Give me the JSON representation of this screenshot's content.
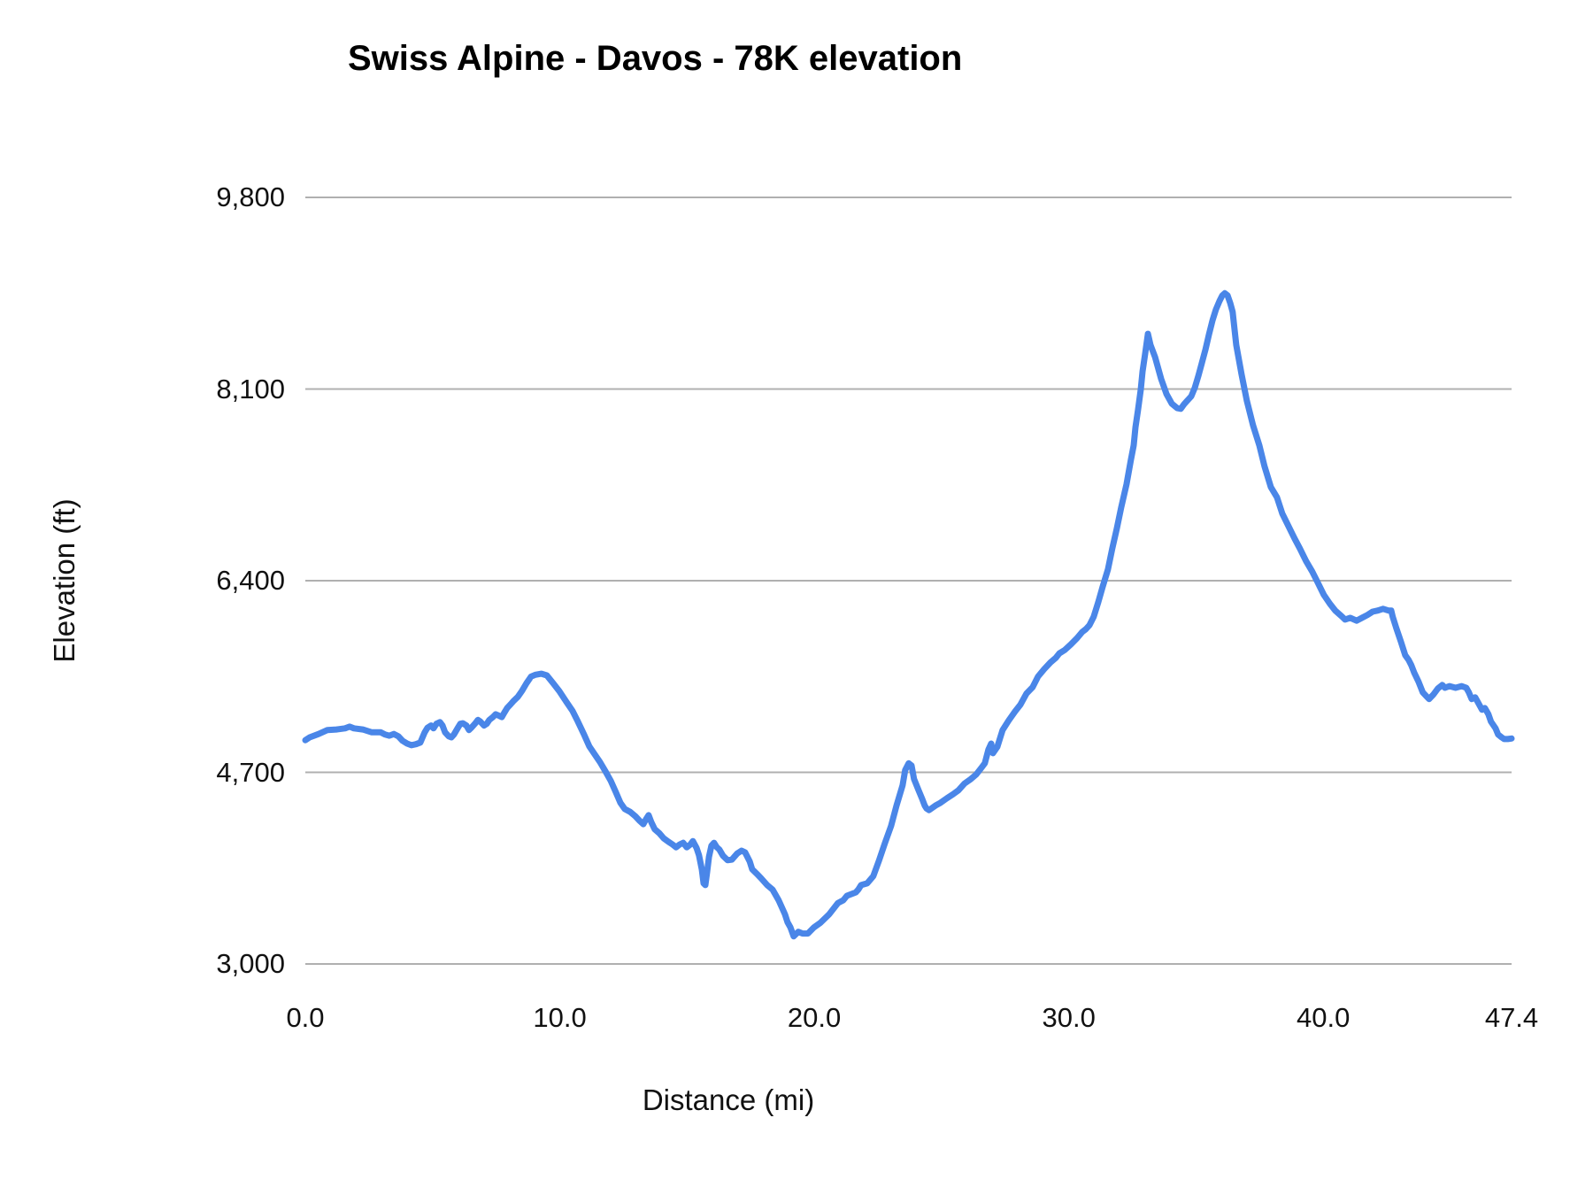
{
  "chart_data": {
    "type": "line",
    "title": "Swiss Alpine - Davos - 78K elevation",
    "xlabel": "Distance (mi)",
    "ylabel": "Elevation (ft)",
    "xlim": [
      0,
      47.4
    ],
    "ylim": [
      3000,
      9800
    ],
    "grid": "horizontal-only",
    "legend": "none",
    "line_color": "#4a86e8",
    "grid_color": "#b0b0b0",
    "x_ticks": [
      {
        "value": 0,
        "label": "0.0"
      },
      {
        "value": 10,
        "label": "10.0"
      },
      {
        "value": 20,
        "label": "20.0"
      },
      {
        "value": 30,
        "label": "30.0"
      },
      {
        "value": 40,
        "label": "40.0"
      },
      {
        "value": 47.4,
        "label": "47.4"
      }
    ],
    "y_ticks": [
      {
        "value": 3000,
        "label": "3,000"
      },
      {
        "value": 4700,
        "label": "4,700"
      },
      {
        "value": 6400,
        "label": "6,400"
      },
      {
        "value": 8100,
        "label": "8,100"
      },
      {
        "value": 9800,
        "label": "9,800"
      }
    ],
    "series": [
      {
        "name": "Elevation",
        "points": [
          [
            0,
            4985
          ],
          [
            0.17,
            5010
          ],
          [
            0.52,
            5040
          ],
          [
            0.87,
            5075
          ],
          [
            1.22,
            5080
          ],
          [
            1.56,
            5090
          ],
          [
            1.74,
            5105
          ],
          [
            1.91,
            5090
          ],
          [
            2.26,
            5080
          ],
          [
            2.61,
            5055
          ],
          [
            2.96,
            5055
          ],
          [
            3.13,
            5035
          ],
          [
            3.3,
            5025
          ],
          [
            3.48,
            5040
          ],
          [
            3.65,
            5020
          ],
          [
            3.82,
            4980
          ],
          [
            4,
            4955
          ],
          [
            4.17,
            4940
          ],
          [
            4.35,
            4950
          ],
          [
            4.52,
            4965
          ],
          [
            4.69,
            5055
          ],
          [
            4.8,
            5095
          ],
          [
            4.94,
            5115
          ],
          [
            5.04,
            5090
          ],
          [
            5.15,
            5130
          ],
          [
            5.29,
            5145
          ],
          [
            5.39,
            5115
          ],
          [
            5.49,
            5055
          ],
          [
            5.63,
            5020
          ],
          [
            5.74,
            5010
          ],
          [
            5.84,
            5035
          ],
          [
            5.98,
            5090
          ],
          [
            6.09,
            5130
          ],
          [
            6.19,
            5135
          ],
          [
            6.33,
            5115
          ],
          [
            6.43,
            5075
          ],
          [
            6.54,
            5100
          ],
          [
            6.68,
            5135
          ],
          [
            6.78,
            5165
          ],
          [
            6.88,
            5150
          ],
          [
            7.02,
            5115
          ],
          [
            7.13,
            5130
          ],
          [
            7.23,
            5165
          ],
          [
            7.37,
            5190
          ],
          [
            7.48,
            5215
          ],
          [
            7.58,
            5205
          ],
          [
            7.72,
            5190
          ],
          [
            7.82,
            5230
          ],
          [
            7.93,
            5270
          ],
          [
            8.07,
            5305
          ],
          [
            8.17,
            5330
          ],
          [
            8.35,
            5370
          ],
          [
            8.52,
            5425
          ],
          [
            8.69,
            5490
          ],
          [
            8.87,
            5550
          ],
          [
            9.04,
            5565
          ],
          [
            9.28,
            5575
          ],
          [
            9.49,
            5560
          ],
          [
            9.74,
            5490
          ],
          [
            9.98,
            5420
          ],
          [
            10.26,
            5325
          ],
          [
            10.5,
            5245
          ],
          [
            10.71,
            5150
          ],
          [
            10.95,
            5035
          ],
          [
            11.16,
            4930
          ],
          [
            11.37,
            4860
          ],
          [
            11.58,
            4790
          ],
          [
            11.79,
            4710
          ],
          [
            12,
            4625
          ],
          [
            12.2,
            4525
          ],
          [
            12.38,
            4430
          ],
          [
            12.55,
            4375
          ],
          [
            12.76,
            4350
          ],
          [
            12.97,
            4310
          ],
          [
            13.14,
            4270
          ],
          [
            13.28,
            4240
          ],
          [
            13.39,
            4285
          ],
          [
            13.49,
            4320
          ],
          [
            13.6,
            4255
          ],
          [
            13.73,
            4195
          ],
          [
            13.91,
            4160
          ],
          [
            14.08,
            4115
          ],
          [
            14.26,
            4085
          ],
          [
            14.43,
            4060
          ],
          [
            14.57,
            4035
          ],
          [
            14.71,
            4060
          ],
          [
            14.85,
            4075
          ],
          [
            14.99,
            4035
          ],
          [
            15.13,
            4060
          ],
          [
            15.23,
            4090
          ],
          [
            15.37,
            4030
          ],
          [
            15.47,
            3965
          ],
          [
            15.58,
            3840
          ],
          [
            15.65,
            3715
          ],
          [
            15.72,
            3700
          ],
          [
            15.79,
            3815
          ],
          [
            15.86,
            3950
          ],
          [
            15.96,
            4050
          ],
          [
            16.06,
            4075
          ],
          [
            16.17,
            4035
          ],
          [
            16.27,
            4015
          ],
          [
            16.41,
            3960
          ],
          [
            16.59,
            3920
          ],
          [
            16.76,
            3925
          ],
          [
            16.97,
            3980
          ],
          [
            17.14,
            4005
          ],
          [
            17.28,
            3990
          ],
          [
            17.46,
            3910
          ],
          [
            17.56,
            3840
          ],
          [
            17.74,
            3800
          ],
          [
            17.91,
            3760
          ],
          [
            18.15,
            3700
          ],
          [
            18.36,
            3660
          ],
          [
            18.6,
            3565
          ],
          [
            18.85,
            3440
          ],
          [
            18.95,
            3370
          ],
          [
            19.06,
            3325
          ],
          [
            19.19,
            3245
          ],
          [
            19.37,
            3285
          ],
          [
            19.54,
            3270
          ],
          [
            19.75,
            3270
          ],
          [
            19.99,
            3325
          ],
          [
            20.24,
            3365
          ],
          [
            20.58,
            3440
          ],
          [
            20.93,
            3540
          ],
          [
            21.14,
            3565
          ],
          [
            21.28,
            3605
          ],
          [
            21.63,
            3635
          ],
          [
            21.73,
            3660
          ],
          [
            21.84,
            3700
          ],
          [
            22.08,
            3715
          ],
          [
            22.32,
            3780
          ],
          [
            22.53,
            3910
          ],
          [
            22.77,
            4070
          ],
          [
            23.02,
            4225
          ],
          [
            23.23,
            4405
          ],
          [
            23.47,
            4585
          ],
          [
            23.57,
            4720
          ],
          [
            23.71,
            4780
          ],
          [
            23.82,
            4760
          ],
          [
            23.92,
            4640
          ],
          [
            24.1,
            4540
          ],
          [
            24.23,
            4470
          ],
          [
            24.34,
            4405
          ],
          [
            24.41,
            4380
          ],
          [
            24.51,
            4365
          ],
          [
            24.76,
            4405
          ],
          [
            24.96,
            4430
          ],
          [
            25.21,
            4470
          ],
          [
            25.45,
            4505
          ],
          [
            25.66,
            4540
          ],
          [
            25.9,
            4600
          ],
          [
            26.15,
            4640
          ],
          [
            26.36,
            4680
          ],
          [
            26.6,
            4750
          ],
          [
            26.7,
            4780
          ],
          [
            26.84,
            4900
          ],
          [
            26.95,
            4955
          ],
          [
            27.02,
            4870
          ],
          [
            27.19,
            4925
          ],
          [
            27.4,
            5075
          ],
          [
            27.64,
            5160
          ],
          [
            27.89,
            5240
          ],
          [
            28.1,
            5300
          ],
          [
            28.34,
            5400
          ],
          [
            28.58,
            5455
          ],
          [
            28.79,
            5550
          ],
          [
            29.03,
            5615
          ],
          [
            29.28,
            5675
          ],
          [
            29.49,
            5715
          ],
          [
            29.63,
            5755
          ],
          [
            29.84,
            5785
          ],
          [
            30.08,
            5835
          ],
          [
            30.32,
            5890
          ],
          [
            30.53,
            5945
          ],
          [
            30.67,
            5970
          ],
          [
            30.81,
            6005
          ],
          [
            30.98,
            6080
          ],
          [
            31.16,
            6210
          ],
          [
            31.33,
            6345
          ],
          [
            31.54,
            6500
          ],
          [
            31.71,
            6685
          ],
          [
            31.89,
            6865
          ],
          [
            32.06,
            7050
          ],
          [
            32.27,
            7255
          ],
          [
            32.44,
            7470
          ],
          [
            32.55,
            7600
          ],
          [
            32.62,
            7760
          ],
          [
            32.72,
            7915
          ],
          [
            32.83,
            8095
          ],
          [
            32.9,
            8255
          ],
          [
            33,
            8410
          ],
          [
            33.11,
            8590
          ],
          [
            33.21,
            8490
          ],
          [
            33.39,
            8385
          ],
          [
            33.63,
            8190
          ],
          [
            33.84,
            8055
          ],
          [
            34.05,
            7970
          ],
          [
            34.26,
            7930
          ],
          [
            34.4,
            7925
          ],
          [
            34.53,
            7965
          ],
          [
            34.67,
            8000
          ],
          [
            34.81,
            8035
          ],
          [
            34.95,
            8110
          ],
          [
            35.09,
            8215
          ],
          [
            35.23,
            8330
          ],
          [
            35.37,
            8450
          ],
          [
            35.51,
            8585
          ],
          [
            35.65,
            8710
          ],
          [
            35.78,
            8805
          ],
          [
            35.92,
            8880
          ],
          [
            36.03,
            8930
          ],
          [
            36.13,
            8950
          ],
          [
            36.24,
            8930
          ],
          [
            36.34,
            8865
          ],
          [
            36.44,
            8785
          ],
          [
            36.58,
            8490
          ],
          [
            36.79,
            8230
          ],
          [
            37,
            7995
          ],
          [
            37.24,
            7780
          ],
          [
            37.49,
            7600
          ],
          [
            37.69,
            7415
          ],
          [
            37.94,
            7230
          ],
          [
            38.18,
            7140
          ],
          [
            38.39,
            6995
          ],
          [
            38.63,
            6885
          ],
          [
            38.87,
            6775
          ],
          [
            39.08,
            6685
          ],
          [
            39.32,
            6575
          ],
          [
            39.57,
            6480
          ],
          [
            39.78,
            6385
          ],
          [
            40.02,
            6275
          ],
          [
            40.26,
            6195
          ],
          [
            40.47,
            6135
          ],
          [
            40.72,
            6085
          ],
          [
            40.86,
            6055
          ],
          [
            41.06,
            6070
          ],
          [
            41.31,
            6045
          ],
          [
            41.52,
            6070
          ],
          [
            41.73,
            6095
          ],
          [
            41.94,
            6125
          ],
          [
            42.15,
            6135
          ],
          [
            42.35,
            6150
          ],
          [
            42.56,
            6135
          ],
          [
            42.67,
            6135
          ],
          [
            42.73,
            6080
          ],
          [
            42.87,
            5980
          ],
          [
            43.05,
            5860
          ],
          [
            43.22,
            5740
          ],
          [
            43.36,
            5695
          ],
          [
            43.46,
            5650
          ],
          [
            43.57,
            5585
          ],
          [
            43.74,
            5505
          ],
          [
            43.91,
            5410
          ],
          [
            44.05,
            5375
          ],
          [
            44.16,
            5350
          ],
          [
            44.33,
            5390
          ],
          [
            44.51,
            5445
          ],
          [
            44.68,
            5475
          ],
          [
            44.78,
            5450
          ],
          [
            44.96,
            5465
          ],
          [
            45.2,
            5450
          ],
          [
            45.44,
            5465
          ],
          [
            45.62,
            5450
          ],
          [
            45.72,
            5410
          ],
          [
            45.83,
            5350
          ],
          [
            45.97,
            5365
          ],
          [
            46.14,
            5295
          ],
          [
            46.24,
            5255
          ],
          [
            46.35,
            5270
          ],
          [
            46.49,
            5215
          ],
          [
            46.59,
            5150
          ],
          [
            46.77,
            5090
          ],
          [
            46.87,
            5035
          ],
          [
            47.01,
            5010
          ],
          [
            47.11,
            4995
          ],
          [
            47.25,
            4995
          ],
          [
            47.4,
            5000
          ]
        ]
      }
    ]
  }
}
